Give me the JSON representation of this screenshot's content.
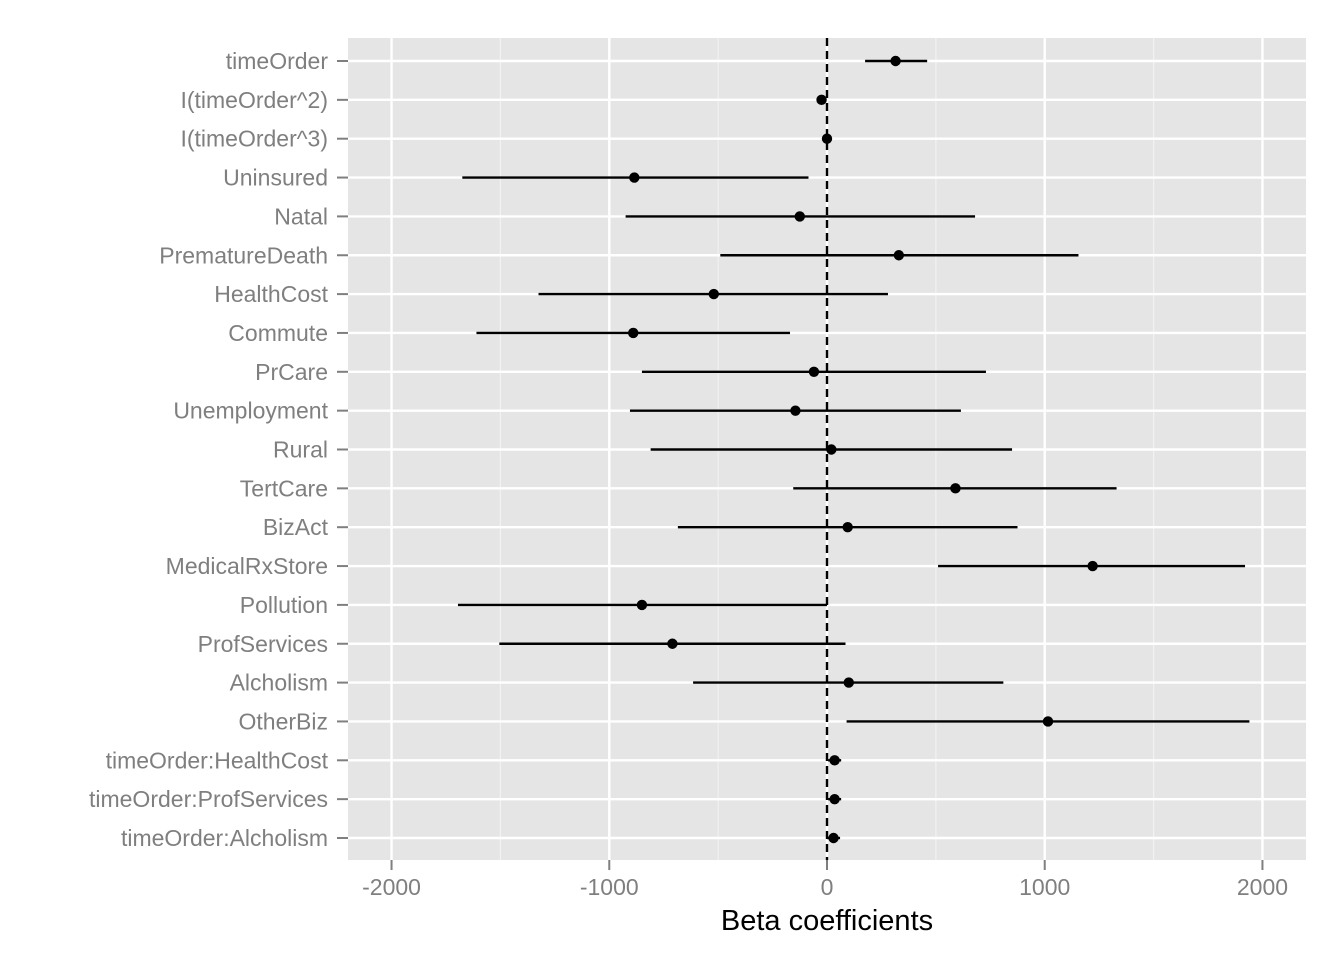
{
  "chart_data": {
    "type": "scatter",
    "variant": "coefficient-plot-with-error-bars",
    "title": "",
    "xlabel": "Beta coefficients",
    "ylabel": "",
    "xlim": [
      -2200,
      2200
    ],
    "x_ticks": [
      -2000,
      -1000,
      0,
      1000,
      2000
    ],
    "x_tick_labels": [
      "-2000",
      "-1000",
      "0",
      "1000",
      "2000"
    ],
    "reference_line": {
      "x": 0,
      "style": "dashed"
    },
    "grid": true,
    "legend": "none",
    "colors": {
      "panel": "#e5e5e5",
      "grid_major": "#ffffff",
      "grid_minor": "#f2f2f2",
      "marks": "#000000",
      "tick_label": "#7f7f7f"
    },
    "series": [
      {
        "points": [
          {
            "label": "timeOrder",
            "estimate": 315,
            "lower": 175,
            "upper": 460
          },
          {
            "label": "I(timeOrder^2)",
            "estimate": -25,
            "lower": -35,
            "upper": -15
          },
          {
            "label": "I(timeOrder^3)",
            "estimate": 0,
            "lower": -3,
            "upper": 3
          },
          {
            "label": "Uninsured",
            "estimate": -885,
            "lower": -1675,
            "upper": -85
          },
          {
            "label": "Natal",
            "estimate": -125,
            "lower": -925,
            "upper": 680
          },
          {
            "label": "PrematureDeath",
            "estimate": 330,
            "lower": -490,
            "upper": 1155
          },
          {
            "label": "HealthCost",
            "estimate": -520,
            "lower": -1325,
            "upper": 280
          },
          {
            "label": "Commute",
            "estimate": -890,
            "lower": -1610,
            "upper": -170
          },
          {
            "label": "PrCare",
            "estimate": -60,
            "lower": -850,
            "upper": 730
          },
          {
            "label": "Unemployment",
            "estimate": -145,
            "lower": -905,
            "upper": 615
          },
          {
            "label": "Rural",
            "estimate": 20,
            "lower": -810,
            "upper": 850
          },
          {
            "label": "TertCare",
            "estimate": 590,
            "lower": -155,
            "upper": 1330
          },
          {
            "label": "BizAct",
            "estimate": 95,
            "lower": -685,
            "upper": 875
          },
          {
            "label": "MedicalRxStore",
            "estimate": 1220,
            "lower": 510,
            "upper": 1920
          },
          {
            "label": "Pollution",
            "estimate": -850,
            "lower": -1695,
            "upper": 0
          },
          {
            "label": "ProfServices",
            "estimate": -710,
            "lower": -1505,
            "upper": 85
          },
          {
            "label": "Alcholism",
            "estimate": 100,
            "lower": -615,
            "upper": 810
          },
          {
            "label": "OtherBiz",
            "estimate": 1015,
            "lower": 90,
            "upper": 1940
          },
          {
            "label": "timeOrder:HealthCost",
            "estimate": 35,
            "lower": 5,
            "upper": 65
          },
          {
            "label": "timeOrder:ProfServices",
            "estimate": 35,
            "lower": 5,
            "upper": 65
          },
          {
            "label": "timeOrder:Alcholism",
            "estimate": 30,
            "lower": 0,
            "upper": 60
          }
        ]
      }
    ]
  }
}
